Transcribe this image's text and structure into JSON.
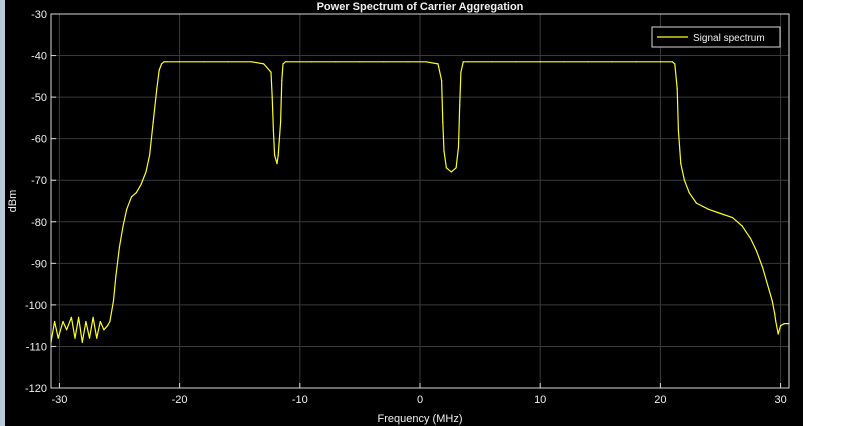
{
  "chart_data": {
    "type": "line",
    "title": "Power Spectrum of Carrier Aggregation",
    "xlabel": "Frequency (MHz)",
    "ylabel": "dBm",
    "xlim": [
      -30.7,
      30.7
    ],
    "ylim": [
      -120,
      -30
    ],
    "x_ticks": [
      -30,
      -20,
      -10,
      0,
      10,
      20,
      30
    ],
    "y_ticks": [
      -30,
      -40,
      -50,
      -60,
      -70,
      -80,
      -90,
      -100,
      -110,
      -120
    ],
    "grid": true,
    "legend": {
      "position": "top-right",
      "entries": [
        "Signal spectrum"
      ]
    },
    "colors": {
      "background": "#000000",
      "axis": "#d8d8d8",
      "grid": "#3a3a3a",
      "series": "#ffff1f"
    },
    "series": [
      {
        "name": "Signal spectrum",
        "x": [
          -30.7,
          -30.4,
          -30.1,
          -29.7,
          -29.4,
          -29.0,
          -28.7,
          -28.4,
          -28.1,
          -27.8,
          -27.5,
          -27.2,
          -26.9,
          -26.6,
          -26.3,
          -26.0,
          -25.8,
          -25.5,
          -25.3,
          -25.0,
          -24.7,
          -24.4,
          -24.0,
          -23.6,
          -23.2,
          -22.8,
          -22.5,
          -22.2,
          -21.9,
          -21.7,
          -21.5,
          -21.3,
          -21.2,
          -21.0,
          -20.0,
          -18.0,
          -16.0,
          -14.0,
          -13.0,
          -12.4,
          -12.3,
          -12.2,
          -12.1,
          -11.9,
          -11.8,
          -11.6,
          -11.5,
          -11.4,
          -11.2,
          -11.0,
          -9.0,
          -7.0,
          -5.0,
          -3.0,
          -1.0,
          0.5,
          1.5,
          1.8,
          1.9,
          2.0,
          2.2,
          2.6,
          3.0,
          3.2,
          3.3,
          3.4,
          3.6,
          4.0,
          6.0,
          8.0,
          10.0,
          12.0,
          14.0,
          16.0,
          18.0,
          20.0,
          21.0,
          21.2,
          21.4,
          21.5,
          21.7,
          22.0,
          22.4,
          23.0,
          24.0,
          25.0,
          26.0,
          26.8,
          27.5,
          28.0,
          28.5,
          29.0,
          29.3,
          29.5,
          29.6,
          29.8,
          30.0,
          30.3,
          30.7
        ],
        "y": [
          -109,
          -104,
          -108,
          -104,
          -106,
          -103,
          -108,
          -103,
          -109,
          -104,
          -108,
          -103,
          -108,
          -104,
          -106,
          -105,
          -104,
          -99,
          -93,
          -86,
          -81,
          -77,
          -74,
          -73,
          -71,
          -68,
          -64,
          -56,
          -48,
          -43.5,
          -42,
          -41.5,
          -41.5,
          -41.5,
          -41.5,
          -41.5,
          -41.5,
          -41.5,
          -42,
          -44,
          -50,
          -58,
          -64,
          -66,
          -64,
          -56,
          -46,
          -42,
          -41.5,
          -41.5,
          -41.5,
          -41.5,
          -41.5,
          -41.5,
          -41.5,
          -41.5,
          -42,
          -46,
          -56,
          -63,
          -67,
          -68,
          -67,
          -62,
          -52,
          -44,
          -41.5,
          -41.5,
          -41.5,
          -41.5,
          -41.5,
          -41.5,
          -41.5,
          -41.5,
          -41.5,
          -41.5,
          -41.5,
          -42,
          -48,
          -58,
          -66,
          -70,
          -73,
          -75.5,
          -77,
          -78,
          -79,
          -81,
          -84,
          -87,
          -91,
          -96,
          -99,
          -102,
          -104,
          -107,
          -105,
          -104.5,
          -104.5
        ]
      }
    ]
  }
}
